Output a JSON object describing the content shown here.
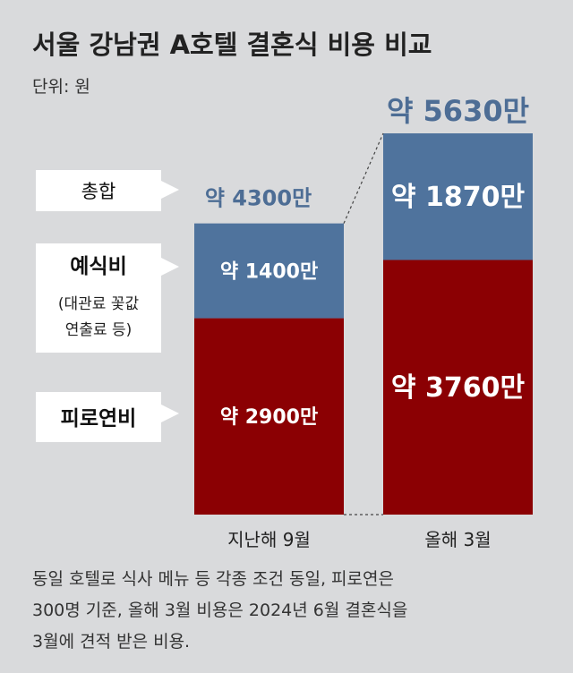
{
  "title": "서울 강남권 A호텔 결혼식 비용 비교",
  "unit_label": "단위: 원",
  "colors": {
    "background": "#d9dadc",
    "ceremony": "#4f739d",
    "reception": "#8b0003",
    "total_text": "#4d6d95",
    "callout_bg": "#ffffff"
  },
  "chart_data": {
    "type": "bar",
    "stacked": true,
    "categories": [
      "지난해 9월",
      "올해 3월"
    ],
    "series": [
      {
        "name": "피로연비",
        "values": [
          2900,
          3760
        ],
        "labels": [
          "약 2900만",
          "약 3760만"
        ]
      },
      {
        "name": "예식비",
        "values": [
          1400,
          1870
        ],
        "labels": [
          "약 1400만",
          "약 1870만"
        ]
      }
    ],
    "totals": [
      4300,
      5630
    ],
    "total_labels": [
      "약 4300만",
      "약 5630만"
    ]
  },
  "callouts": {
    "total": "총합",
    "ceremony": "예식비",
    "ceremony_sub": [
      "(대관료 꽃값",
      "연출료 등)"
    ],
    "reception": "피로연비"
  },
  "footnote": [
    "동일 호텔로 식사 메뉴 등 각종 조건 동일, 피로연은",
    "300명 기준, 올해 3월 비용은 2024년 6월 결혼식을",
    "3월에 견적 받은 비용."
  ]
}
